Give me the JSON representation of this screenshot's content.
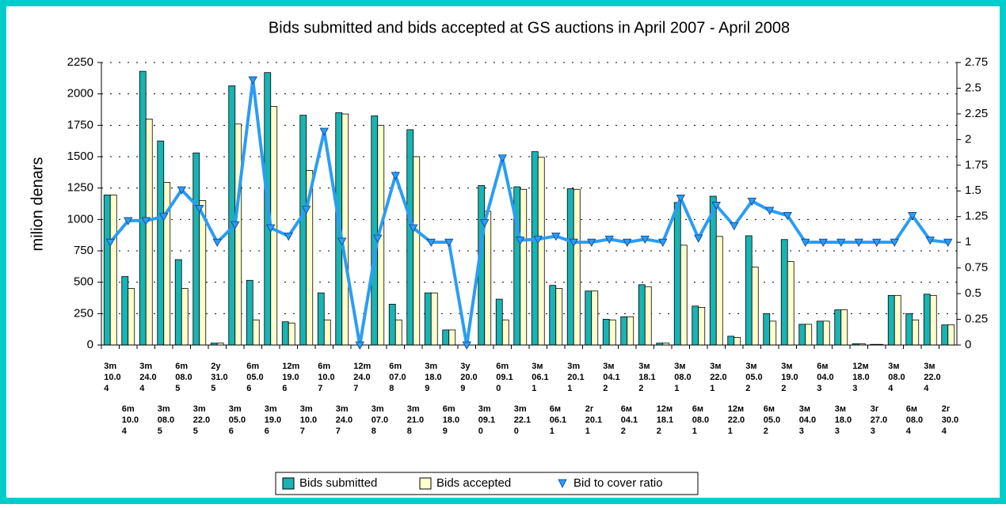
{
  "chart_data": {
    "type": "bar",
    "title": "Bids submitted and bids accepted at GS auctions in April 2007 - April 2008",
    "y_label": "milion denars",
    "categories": [
      "3m 10.04",
      "6m 10.04",
      "3m 24.04",
      "3m 08.05",
      "6m 08.05",
      "3m 22.05",
      "2y 31.05",
      "3m 05.06",
      "6m 05.06",
      "3m 19.06",
      "12m 19.06",
      "3m 10.07",
      "6m 10.07",
      "3m 24.07",
      "12m 24.07",
      "3m 07.08",
      "6m 07.08",
      "3m 21.08",
      "3m 18.09",
      "6m 18.09",
      "3y 20.09",
      "3m 09.10",
      "6m 09.10",
      "3m 22.10",
      "3м 06.11",
      "6м 06.11",
      "3m 20.11",
      "2г 20.11",
      "3м 04.12",
      "6м 04.12",
      "3м 18.12",
      "12м 18.12",
      "3м 08.01",
      "6м 08.01",
      "3м 22.01",
      "12м 22.01",
      "3м 05.02",
      "6м 05.02",
      "3м 19.02",
      "3м 04.03",
      "6м 04.03",
      "3м 18.03",
      "12м 18.03",
      "3г 27.03",
      "3м 08.04",
      "6м 08.04",
      "3м 22.04",
      "2г 30.04"
    ],
    "series": [
      {
        "name": "Bids submitted",
        "color": "#1ab3b3",
        "values": [
          1195,
          545,
          2180,
          1625,
          680,
          1530,
          15,
          2065,
          515,
          2170,
          185,
          1830,
          415,
          1850,
          0,
          1825,
          325,
          1715,
          415,
          120,
          0,
          1270,
          365,
          1260,
          1540,
          475,
          1245,
          430,
          205,
          225,
          480,
          15,
          1135,
          310,
          1185,
          70,
          870,
          250,
          840,
          165,
          190,
          280,
          10,
          5,
          395,
          250,
          405,
          160
        ]
      },
      {
        "name": "Bids accepted",
        "color": "#ffffcc",
        "values": [
          1195,
          450,
          1800,
          1295,
          450,
          1150,
          15,
          1760,
          200,
          1900,
          175,
          1390,
          200,
          1840,
          0,
          1750,
          200,
          1500,
          415,
          120,
          0,
          1065,
          200,
          1240,
          1495,
          450,
          1240,
          430,
          200,
          225,
          465,
          15,
          795,
          300,
          865,
          60,
          620,
          190,
          665,
          165,
          190,
          280,
          10,
          5,
          395,
          200,
          395,
          160
        ]
      },
      {
        "name": "Bid to cover ratio",
        "color": "#2a9df4",
        "type": "line",
        "axis": "y2",
        "values": [
          1.0,
          1.21,
          1.21,
          1.25,
          1.51,
          1.33,
          1.0,
          1.17,
          2.58,
          1.14,
          1.06,
          1.32,
          2.08,
          1.01,
          0,
          1.04,
          1.65,
          1.14,
          1.0,
          1.0,
          0,
          1.19,
          1.82,
          1.02,
          1.03,
          1.06,
          1.0,
          1.0,
          1.03,
          1.0,
          1.03,
          1.0,
          1.43,
          1.04,
          1.36,
          1.16,
          1.4,
          1.31,
          1.26,
          1.0,
          1.0,
          1.0,
          1.0,
          1.0,
          1.0,
          1.26,
          1.02,
          1.0
        ]
      }
    ],
    "ylim": [
      0,
      2250
    ],
    "yticks": [
      0,
      250,
      500,
      750,
      1000,
      1250,
      1500,
      1750,
      2000,
      2250
    ],
    "y2lim": [
      0,
      2.75
    ],
    "y2ticks": [
      0,
      0.25,
      0.5,
      0.75,
      1,
      1.25,
      1.5,
      1.75,
      2,
      2.25,
      2.5,
      2.75
    ],
    "grid": true,
    "legend": "bottom"
  }
}
